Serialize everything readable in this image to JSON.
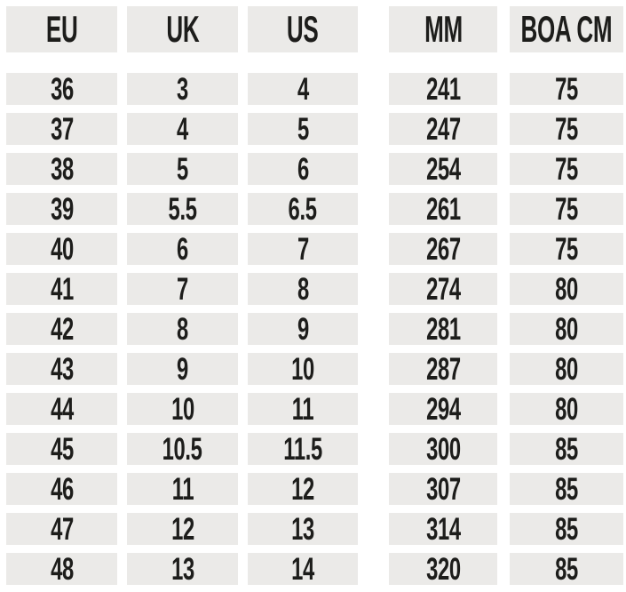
{
  "colors": {
    "page_background": "#ffffff",
    "cell_background": "#ebeae8",
    "text": "#1d1d1b"
  },
  "size_chart": {
    "columns": [
      {
        "key": "eu",
        "label": "EU",
        "group": "left"
      },
      {
        "key": "uk",
        "label": "UK",
        "group": "left"
      },
      {
        "key": "us",
        "label": "US",
        "group": "left"
      },
      {
        "key": "mm",
        "label": "MM",
        "group": "right"
      },
      {
        "key": "boa_cm",
        "label": "BOA CM",
        "group": "right"
      }
    ],
    "rows": [
      {
        "eu": "36",
        "uk": "3",
        "us": "4",
        "mm": "241",
        "boa_cm": "75"
      },
      {
        "eu": "37",
        "uk": "4",
        "us": "5",
        "mm": "247",
        "boa_cm": "75"
      },
      {
        "eu": "38",
        "uk": "5",
        "us": "6",
        "mm": "254",
        "boa_cm": "75"
      },
      {
        "eu": "39",
        "uk": "5.5",
        "us": "6.5",
        "mm": "261",
        "boa_cm": "75"
      },
      {
        "eu": "40",
        "uk": "6",
        "us": "7",
        "mm": "267",
        "boa_cm": "75"
      },
      {
        "eu": "41",
        "uk": "7",
        "us": "8",
        "mm": "274",
        "boa_cm": "80"
      },
      {
        "eu": "42",
        "uk": "8",
        "us": "9",
        "mm": "281",
        "boa_cm": "80"
      },
      {
        "eu": "43",
        "uk": "9",
        "us": "10",
        "mm": "287",
        "boa_cm": "80"
      },
      {
        "eu": "44",
        "uk": "10",
        "us": "11",
        "mm": "294",
        "boa_cm": "80"
      },
      {
        "eu": "45",
        "uk": "10.5",
        "us": "11.5",
        "mm": "300",
        "boa_cm": "85"
      },
      {
        "eu": "46",
        "uk": "11",
        "us": "12",
        "mm": "307",
        "boa_cm": "85"
      },
      {
        "eu": "47",
        "uk": "12",
        "us": "13",
        "mm": "314",
        "boa_cm": "85"
      },
      {
        "eu": "48",
        "uk": "13",
        "us": "14",
        "mm": "320",
        "boa_cm": "85"
      }
    ]
  }
}
